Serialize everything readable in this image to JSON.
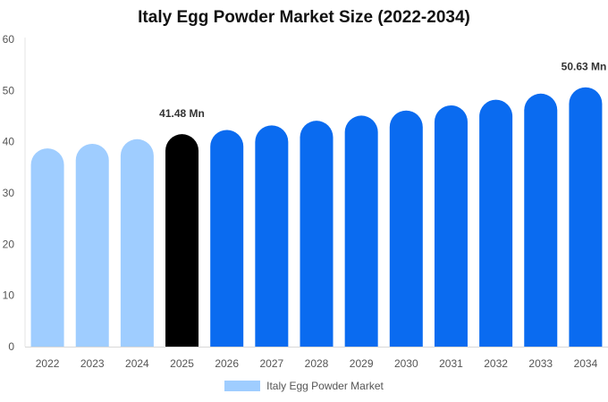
{
  "chart_data": {
    "type": "bar",
    "title": "Italy Egg Powder Market Size (2022-2034)",
    "xlabel": "",
    "ylabel": "",
    "ylim": [
      0,
      60
    ],
    "yticks": [
      0,
      10,
      20,
      30,
      40,
      50,
      60
    ],
    "categories": [
      "2022",
      "2023",
      "2024",
      "2025",
      "2026",
      "2027",
      "2028",
      "2029",
      "2030",
      "2031",
      "2032",
      "2033",
      "2034"
    ],
    "series": [
      {
        "name": "Italy Egg Powder Market",
        "values": [
          38.7,
          39.6,
          40.5,
          41.48,
          42.3,
          43.2,
          44.1,
          45.1,
          46.1,
          47.1,
          48.2,
          49.4,
          50.63
        ]
      }
    ],
    "bar_colors": [
      "#9fcdff",
      "#9fcdff",
      "#9fcdff",
      "#000000",
      "#0a6bf0",
      "#0a6bf0",
      "#0a6bf0",
      "#0a6bf0",
      "#0a6bf0",
      "#0a6bf0",
      "#0a6bf0",
      "#0a6bf0",
      "#0a6bf0"
    ],
    "annotations": [
      {
        "category": "2025",
        "text": "41.48 Mn"
      },
      {
        "category": "2034",
        "text": "50.63 Mn"
      }
    ],
    "legend": {
      "position": "bottom",
      "color": "#9fcdff"
    },
    "grid": false
  }
}
